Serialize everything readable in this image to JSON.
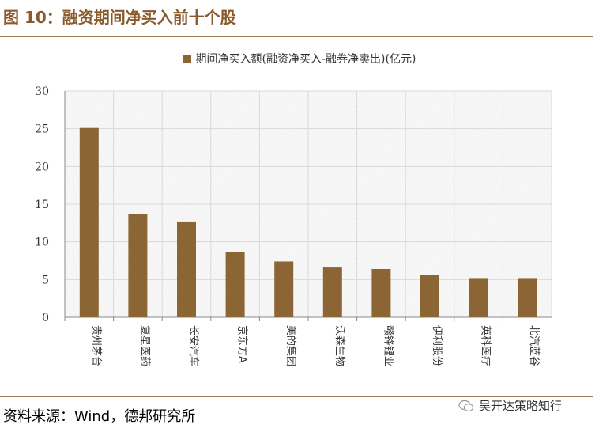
{
  "figure": {
    "title": "图 10：融资期间净买入前十个股",
    "source": "资料来源：Wind，德邦研究所",
    "watermark": "吴开达策略知行"
  },
  "colors": {
    "title": "#8B5A2B",
    "rule": "#A07850",
    "bar": "#8B6534",
    "plot_bg": "#F7F7F7",
    "grid": "#D9D9D9"
  },
  "chart_data": {
    "type": "bar",
    "title": "",
    "legend": [
      "期间净买入额(融资净买入-融券净卖出)(亿元)"
    ],
    "legend_position": "top",
    "categories": [
      "贵州茅台",
      "复星医药",
      "长安汽车",
      "京东方A",
      "美的集团",
      "沃森生物",
      "赣锋锂业",
      "伊利股份",
      "英科医疗",
      "北汽蓝谷"
    ],
    "series": [
      {
        "name": "期间净买入额(融资净买入-融券净卖出)(亿元)",
        "values": [
          25.1,
          13.7,
          12.7,
          8.7,
          7.4,
          6.6,
          6.4,
          5.6,
          5.2,
          5.2
        ]
      }
    ],
    "yticks": [
      "0",
      "5",
      "10",
      "15",
      "20",
      "25",
      "30"
    ],
    "ylim": [
      0,
      30
    ],
    "grid": true
  }
}
